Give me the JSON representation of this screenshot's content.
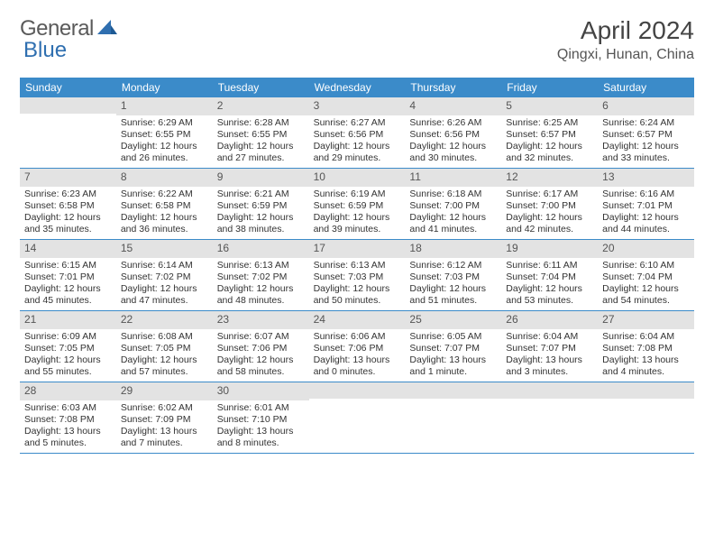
{
  "brand": {
    "part1": "General",
    "part2": "Blue"
  },
  "title": "April 2024",
  "location": "Qingxi, Hunan, China",
  "colors": {
    "header_bg": "#3b8bc9",
    "daynum_bg": "#e3e3e3",
    "border": "#3b8bc9",
    "text": "#333333",
    "brand_gray": "#5a5a5a",
    "brand_blue": "#2f6fb0"
  },
  "day_headers": [
    "Sunday",
    "Monday",
    "Tuesday",
    "Wednesday",
    "Thursday",
    "Friday",
    "Saturday"
  ],
  "weeks": [
    [
      {
        "empty": true
      },
      {
        "n": "1",
        "sr": "Sunrise: 6:29 AM",
        "ss": "Sunset: 6:55 PM",
        "dl": "Daylight: 12 hours and 26 minutes."
      },
      {
        "n": "2",
        "sr": "Sunrise: 6:28 AM",
        "ss": "Sunset: 6:55 PM",
        "dl": "Daylight: 12 hours and 27 minutes."
      },
      {
        "n": "3",
        "sr": "Sunrise: 6:27 AM",
        "ss": "Sunset: 6:56 PM",
        "dl": "Daylight: 12 hours and 29 minutes."
      },
      {
        "n": "4",
        "sr": "Sunrise: 6:26 AM",
        "ss": "Sunset: 6:56 PM",
        "dl": "Daylight: 12 hours and 30 minutes."
      },
      {
        "n": "5",
        "sr": "Sunrise: 6:25 AM",
        "ss": "Sunset: 6:57 PM",
        "dl": "Daylight: 12 hours and 32 minutes."
      },
      {
        "n": "6",
        "sr": "Sunrise: 6:24 AM",
        "ss": "Sunset: 6:57 PM",
        "dl": "Daylight: 12 hours and 33 minutes."
      }
    ],
    [
      {
        "n": "7",
        "sr": "Sunrise: 6:23 AM",
        "ss": "Sunset: 6:58 PM",
        "dl": "Daylight: 12 hours and 35 minutes."
      },
      {
        "n": "8",
        "sr": "Sunrise: 6:22 AM",
        "ss": "Sunset: 6:58 PM",
        "dl": "Daylight: 12 hours and 36 minutes."
      },
      {
        "n": "9",
        "sr": "Sunrise: 6:21 AM",
        "ss": "Sunset: 6:59 PM",
        "dl": "Daylight: 12 hours and 38 minutes."
      },
      {
        "n": "10",
        "sr": "Sunrise: 6:19 AM",
        "ss": "Sunset: 6:59 PM",
        "dl": "Daylight: 12 hours and 39 minutes."
      },
      {
        "n": "11",
        "sr": "Sunrise: 6:18 AM",
        "ss": "Sunset: 7:00 PM",
        "dl": "Daylight: 12 hours and 41 minutes."
      },
      {
        "n": "12",
        "sr": "Sunrise: 6:17 AM",
        "ss": "Sunset: 7:00 PM",
        "dl": "Daylight: 12 hours and 42 minutes."
      },
      {
        "n": "13",
        "sr": "Sunrise: 6:16 AM",
        "ss": "Sunset: 7:01 PM",
        "dl": "Daylight: 12 hours and 44 minutes."
      }
    ],
    [
      {
        "n": "14",
        "sr": "Sunrise: 6:15 AM",
        "ss": "Sunset: 7:01 PM",
        "dl": "Daylight: 12 hours and 45 minutes."
      },
      {
        "n": "15",
        "sr": "Sunrise: 6:14 AM",
        "ss": "Sunset: 7:02 PM",
        "dl": "Daylight: 12 hours and 47 minutes."
      },
      {
        "n": "16",
        "sr": "Sunrise: 6:13 AM",
        "ss": "Sunset: 7:02 PM",
        "dl": "Daylight: 12 hours and 48 minutes."
      },
      {
        "n": "17",
        "sr": "Sunrise: 6:13 AM",
        "ss": "Sunset: 7:03 PM",
        "dl": "Daylight: 12 hours and 50 minutes."
      },
      {
        "n": "18",
        "sr": "Sunrise: 6:12 AM",
        "ss": "Sunset: 7:03 PM",
        "dl": "Daylight: 12 hours and 51 minutes."
      },
      {
        "n": "19",
        "sr": "Sunrise: 6:11 AM",
        "ss": "Sunset: 7:04 PM",
        "dl": "Daylight: 12 hours and 53 minutes."
      },
      {
        "n": "20",
        "sr": "Sunrise: 6:10 AM",
        "ss": "Sunset: 7:04 PM",
        "dl": "Daylight: 12 hours and 54 minutes."
      }
    ],
    [
      {
        "n": "21",
        "sr": "Sunrise: 6:09 AM",
        "ss": "Sunset: 7:05 PM",
        "dl": "Daylight: 12 hours and 55 minutes."
      },
      {
        "n": "22",
        "sr": "Sunrise: 6:08 AM",
        "ss": "Sunset: 7:05 PM",
        "dl": "Daylight: 12 hours and 57 minutes."
      },
      {
        "n": "23",
        "sr": "Sunrise: 6:07 AM",
        "ss": "Sunset: 7:06 PM",
        "dl": "Daylight: 12 hours and 58 minutes."
      },
      {
        "n": "24",
        "sr": "Sunrise: 6:06 AM",
        "ss": "Sunset: 7:06 PM",
        "dl": "Daylight: 13 hours and 0 minutes."
      },
      {
        "n": "25",
        "sr": "Sunrise: 6:05 AM",
        "ss": "Sunset: 7:07 PM",
        "dl": "Daylight: 13 hours and 1 minute."
      },
      {
        "n": "26",
        "sr": "Sunrise: 6:04 AM",
        "ss": "Sunset: 7:07 PM",
        "dl": "Daylight: 13 hours and 3 minutes."
      },
      {
        "n": "27",
        "sr": "Sunrise: 6:04 AM",
        "ss": "Sunset: 7:08 PM",
        "dl": "Daylight: 13 hours and 4 minutes."
      }
    ],
    [
      {
        "n": "28",
        "sr": "Sunrise: 6:03 AM",
        "ss": "Sunset: 7:08 PM",
        "dl": "Daylight: 13 hours and 5 minutes."
      },
      {
        "n": "29",
        "sr": "Sunrise: 6:02 AM",
        "ss": "Sunset: 7:09 PM",
        "dl": "Daylight: 13 hours and 7 minutes."
      },
      {
        "n": "30",
        "sr": "Sunrise: 6:01 AM",
        "ss": "Sunset: 7:10 PM",
        "dl": "Daylight: 13 hours and 8 minutes."
      },
      {
        "empty": true
      },
      {
        "empty": true
      },
      {
        "empty": true
      },
      {
        "empty": true
      }
    ]
  ]
}
